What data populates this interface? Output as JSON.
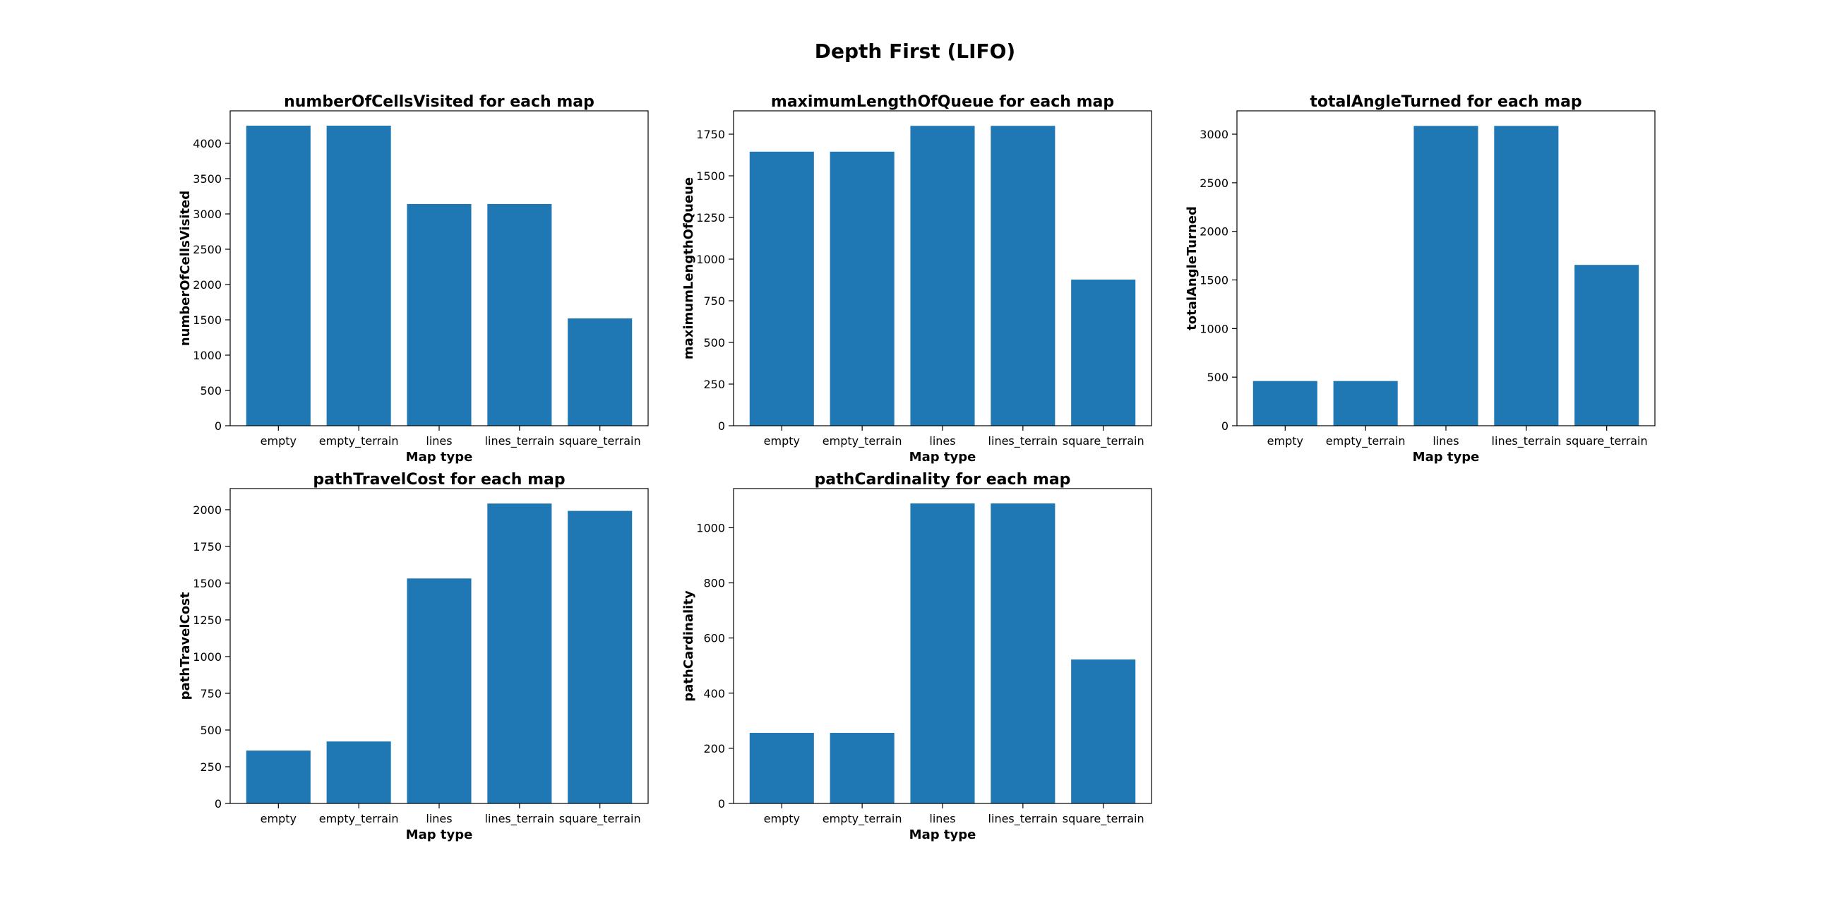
{
  "figure": {
    "suptitle": "Depth First (LIFO)",
    "bar_color": "#1f77b4"
  },
  "chart_data": [
    {
      "type": "bar",
      "title": "numberOfCellsVisited for each map",
      "xlabel": "Map type",
      "ylabel": "numberOfCellsVisited",
      "categories": [
        "empty",
        "empty_terrain",
        "lines",
        "lines_terrain",
        "square_terrain"
      ],
      "values": [
        4250,
        4250,
        3140,
        3140,
        1520
      ],
      "ylim": [
        0,
        4460
      ],
      "yticks": [
        0,
        500,
        1000,
        1500,
        2000,
        2500,
        3000,
        3500,
        4000
      ],
      "grid": false
    },
    {
      "type": "bar",
      "title": "maximumLengthOfQueue for each map",
      "xlabel": "Map type",
      "ylabel": "maximumLengthOfQueue",
      "categories": [
        "empty",
        "empty_terrain",
        "lines",
        "lines_terrain",
        "square_terrain"
      ],
      "values": [
        1645,
        1645,
        1800,
        1800,
        877
      ],
      "ylim": [
        0,
        1890
      ],
      "yticks": [
        0,
        250,
        500,
        750,
        1000,
        1250,
        1500,
        1750
      ],
      "grid": false
    },
    {
      "type": "bar",
      "title": "totalAngleTurned for each map",
      "xlabel": "Map type",
      "ylabel": "totalAngleTurned",
      "categories": [
        "empty",
        "empty_terrain",
        "lines",
        "lines_terrain",
        "square_terrain"
      ],
      "values": [
        460,
        460,
        3085,
        3085,
        1655
      ],
      "ylim": [
        0,
        3240
      ],
      "yticks": [
        0,
        500,
        1000,
        1500,
        2000,
        2500,
        3000
      ],
      "grid": false
    },
    {
      "type": "bar",
      "title": "pathTravelCost for each map",
      "xlabel": "Map type",
      "ylabel": "pathTravelCost",
      "categories": [
        "empty",
        "empty_terrain",
        "lines",
        "lines_terrain",
        "square_terrain"
      ],
      "values": [
        360,
        422,
        1532,
        2042,
        1992
      ],
      "ylim": [
        0,
        2144
      ],
      "yticks": [
        0,
        250,
        500,
        750,
        1000,
        1250,
        1500,
        1750,
        2000
      ],
      "grid": false
    },
    {
      "type": "bar",
      "title": "pathCardinality for each map",
      "xlabel": "Map type",
      "ylabel": "pathCardinality",
      "categories": [
        "empty",
        "empty_terrain",
        "lines",
        "lines_terrain",
        "square_terrain"
      ],
      "values": [
        256,
        256,
        1088,
        1088,
        522
      ],
      "ylim": [
        0,
        1142
      ],
      "yticks": [
        0,
        200,
        400,
        600,
        800,
        1000
      ],
      "grid": false
    }
  ]
}
